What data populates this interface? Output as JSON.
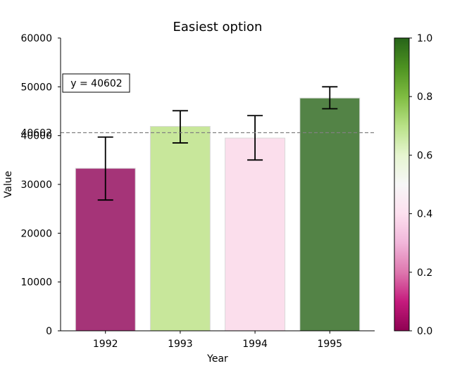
{
  "chart_data": {
    "type": "bar",
    "title": "Easiest option",
    "xlabel": "Year",
    "ylabel": "Value",
    "categories": [
      "1992",
      "1993",
      "1994",
      "1995"
    ],
    "values": [
      33300,
      41900,
      39500,
      47700
    ],
    "error_low": [
      26800,
      38500,
      35000,
      45500
    ],
    "error_high": [
      39700,
      45100,
      44100,
      50000
    ],
    "ylim": [
      0,
      60000
    ],
    "yticks": [
      0,
      10000,
      20000,
      30000,
      40000,
      50000,
      60000
    ],
    "ytick_labels": [
      "0",
      "10000",
      "20000",
      "30000",
      "40000",
      "50000",
      "60000"
    ],
    "bar_colors": [
      "#a53478",
      "#c8e79b",
      "#fbdeec",
      "#538346"
    ],
    "reference_line": {
      "value": 40602,
      "tick_label": "40602",
      "annotation": "y = 40602",
      "color": "#808080",
      "style": "dashed"
    },
    "colorbar": {
      "colormap": "PiYG",
      "range": [
        0.0,
        1.0
      ],
      "ticks": [
        0.0,
        0.2,
        0.4,
        0.6,
        0.8,
        1.0
      ],
      "tick_labels": [
        "0.0",
        "0.2",
        "0.4",
        "0.6",
        "0.8",
        "1.0"
      ],
      "stops": [
        "#8e0152",
        "#c51b7d",
        "#de77ae",
        "#f1b6da",
        "#fde0ef",
        "#f7f7f7",
        "#e6f5d0",
        "#b8e186",
        "#7fbc41",
        "#4d9221",
        "#276419"
      ]
    },
    "grid": false,
    "legend": "none"
  }
}
